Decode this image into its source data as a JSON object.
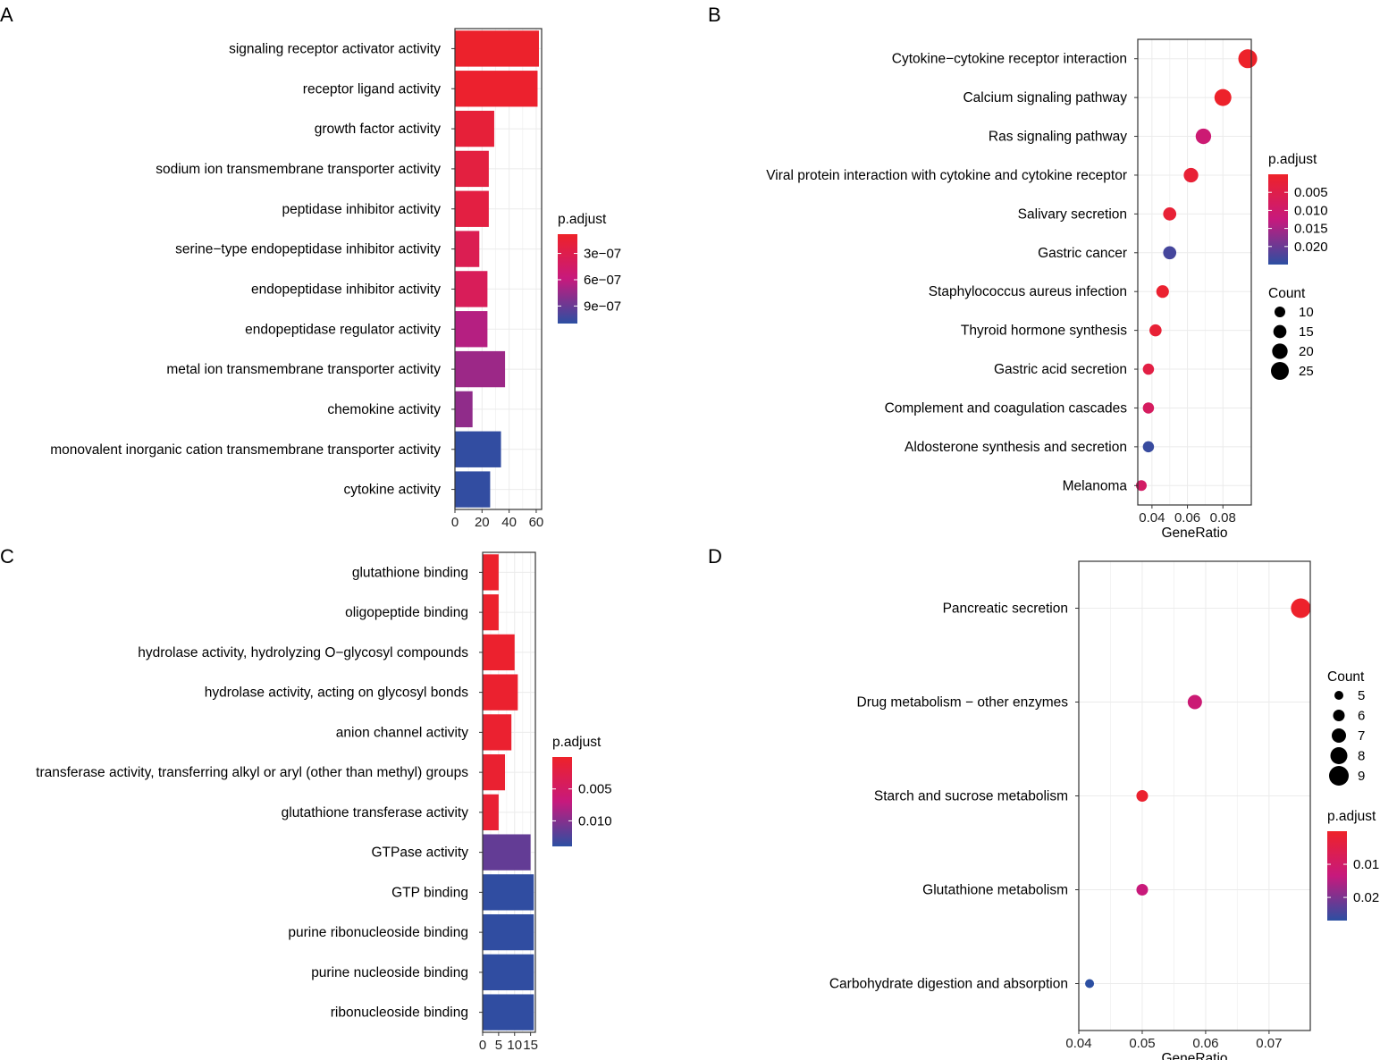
{
  "colors": {
    "low": "#ee2229",
    "mid": "#c7197d",
    "high": "#2c4fa2",
    "grid": "#ebebeb",
    "frame": "#333333"
  },
  "chart_data": [
    {
      "panel": "A",
      "type": "bar",
      "categories": [
        "signaling receptor activator activity",
        "receptor ligand activity",
        "growth factor activity",
        "sodium ion transmembrane transporter activity",
        "peptidase inhibitor activity",
        "serine−type endopeptidase inhibitor activity",
        "endopeptidase inhibitor activity",
        "endopeptidase regulator activity",
        "metal ion transmembrane transporter activity",
        "chemokine activity",
        "monovalent inorganic cation transmembrane transporter activity",
        "cytokine activity"
      ],
      "values": [
        62,
        61,
        29,
        25,
        25,
        18,
        24,
        24,
        37,
        13,
        34,
        26
      ],
      "p_adjust": [
        1e-07,
        1.1e-07,
        1.8e-07,
        2.2e-07,
        2.3e-07,
        3.3e-07,
        3.7e-07,
        6.5e-07,
        7.3e-07,
        7.7e-07,
        1.08e-06,
        1.08e-06
      ],
      "xlim": [
        0,
        64
      ],
      "xticks": [
        0,
        20,
        40,
        60
      ],
      "legend": {
        "title": "p.adjust",
        "min": 8e-08,
        "max": 1.1e-06,
        "ticks": [
          3e-07,
          6e-07,
          9e-07
        ],
        "tick_labels": [
          "3e−07",
          "6e−07",
          "9e−07"
        ]
      }
    },
    {
      "panel": "B",
      "type": "scatter",
      "categories": [
        "Cytokine−cytokine receptor interaction",
        "Calcium signaling pathway",
        "Ras signaling pathway",
        "Viral protein interaction with cytokine and cytokine receptor",
        "Salivary secretion",
        "Gastric cancer",
        "Staphylococcus aureus infection",
        "Thyroid hormone synthesis",
        "Gastric acid secretion",
        "Complement and coagulation cascades",
        "Aldosterone synthesis and secretion",
        "Melanoma"
      ],
      "gene_ratio": [
        0.094,
        0.08,
        0.069,
        0.062,
        0.05,
        0.05,
        0.046,
        0.042,
        0.038,
        0.038,
        0.038,
        0.034
      ],
      "count": [
        27,
        23,
        20,
        18,
        15,
        15,
        14,
        13,
        11,
        11,
        11,
        10
      ],
      "p_adjust": [
        0.0002,
        0.0003,
        0.011,
        0.002,
        0.002,
        0.023,
        0.001,
        0.002,
        0.004,
        0.008,
        0.024,
        0.009
      ],
      "xlim": [
        0.032,
        0.096
      ],
      "xticks": [
        0.04,
        0.06,
        0.08
      ],
      "xtick_labels": [
        "0.04",
        "0.06",
        "0.08"
      ],
      "xlabel": "GeneRatio",
      "legend_color": {
        "title": "p.adjust",
        "min": 0.0,
        "max": 0.025,
        "ticks": [
          0.005,
          0.01,
          0.015,
          0.02
        ],
        "tick_labels": [
          "0.005",
          "0.010",
          "0.015",
          "0.020"
        ]
      },
      "legend_size": {
        "title": "Count",
        "values": [
          10,
          15,
          20,
          25
        ],
        "labels": [
          "10",
          "15",
          "20",
          "25"
        ]
      }
    },
    {
      "panel": "C",
      "type": "bar",
      "categories": [
        "glutathione binding",
        "oligopeptide binding",
        "hydrolase activity, hydrolyzing O−glycosyl compounds",
        "hydrolase activity, acting on glycosyl bonds",
        "anion channel activity",
        "transferase activity, transferring alkyl or aryl (other than methyl) groups",
        "glutathione transferase activity",
        "GTPase activity",
        "GTP binding",
        "purine ribonucleoside binding",
        "purine nucleoside binding",
        "ribonucleoside binding"
      ],
      "values": [
        5,
        5,
        10,
        11,
        9,
        7,
        5,
        15,
        16,
        16,
        16,
        16
      ],
      "p_adjust": [
        0.0003,
        0.0003,
        0.0004,
        0.0005,
        0.0006,
        0.0007,
        0.0009,
        0.0115,
        0.0138,
        0.0138,
        0.0138,
        0.0138
      ],
      "xlim": [
        0,
        16.5
      ],
      "xticks": [
        0,
        5,
        10,
        15
      ],
      "xtick_labels": [
        "0",
        "5",
        "10",
        "15"
      ],
      "legend": {
        "title": "p.adjust",
        "min": 0.0,
        "max": 0.014,
        "ticks": [
          0.005,
          0.01
        ],
        "tick_labels": [
          "0.005",
          "0.010"
        ]
      }
    },
    {
      "panel": "D",
      "type": "scatter",
      "categories": [
        "Pancreatic secretion",
        "Drug metabolism − other enzymes",
        "Starch and sucrose metabolism",
        "Glutathione metabolism",
        "Carbohydrate digestion and absorption"
      ],
      "gene_ratio": [
        0.075,
        0.0583,
        0.05,
        0.05,
        0.0417
      ],
      "count": [
        9,
        7,
        6,
        6,
        5
      ],
      "p_adjust": [
        0.0005,
        0.012,
        0.001,
        0.013,
        0.027
      ],
      "xlim": [
        0.04,
        0.0765
      ],
      "xticks": [
        0.04,
        0.05,
        0.06,
        0.07
      ],
      "xtick_labels": [
        "0.04",
        "0.05",
        "0.06",
        "0.07"
      ],
      "xlabel": "GeneRatio",
      "legend_size": {
        "title": "Count",
        "values": [
          5,
          6,
          7,
          8,
          9
        ],
        "labels": [
          "5",
          "6",
          "7",
          "8",
          "9"
        ]
      },
      "legend_color": {
        "title": "p.adjust",
        "min": 0.0,
        "max": 0.027,
        "ticks": [
          0.01,
          0.02
        ],
        "tick_labels": [
          "0.01",
          "0.02"
        ]
      }
    }
  ]
}
